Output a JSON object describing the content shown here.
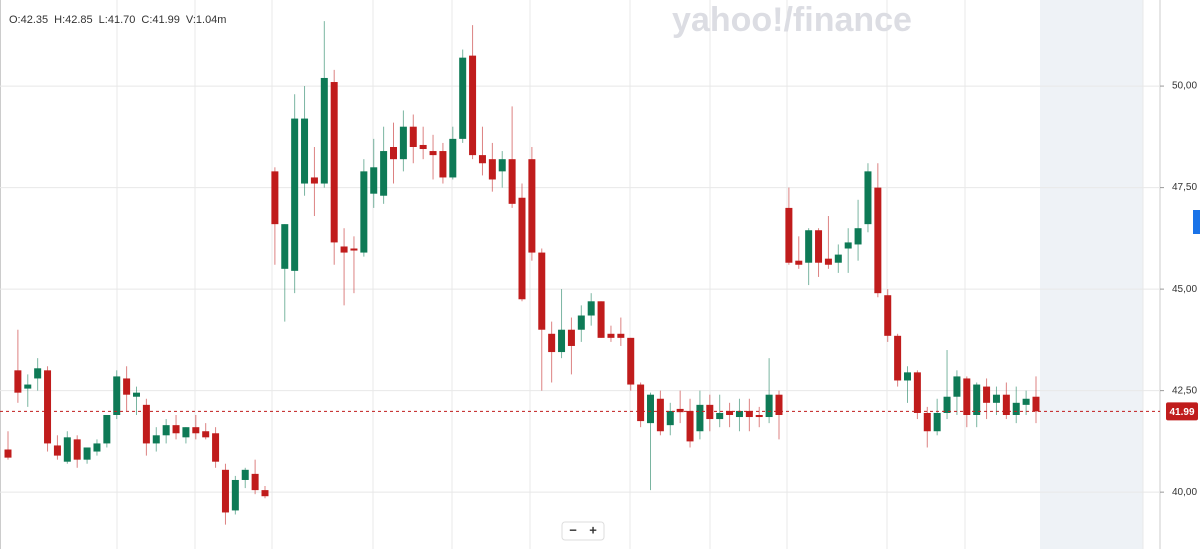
{
  "chart_data": {
    "type": "candlestick",
    "watermark": "yahoo!/finance",
    "info": [
      "O:42.35",
      "H:42.85",
      "L:41.70",
      "C:41.99",
      "V:1.04m"
    ],
    "zoom_out": "−",
    "zoom_in": "+",
    "up_color": "#0e7a56",
    "down_color": "#c01c1c",
    "ylim": [
      38.6,
      52.12
    ],
    "yticks": [
      {
        "value": 40,
        "label": "40,00"
      },
      {
        "value": 42.5,
        "label": "42,50"
      },
      {
        "value": 45,
        "label": "45,00"
      },
      {
        "value": 47.5,
        "label": "47,50"
      },
      {
        "value": 50,
        "label": "50,00"
      }
    ],
    "grid": true,
    "last": {
      "value": 41.99,
      "label": "41.99"
    },
    "ohlc": [
      [
        41.05,
        41.5,
        40.8,
        40.85
      ],
      [
        43.0,
        44.0,
        42.2,
        42.45
      ],
      [
        42.55,
        42.9,
        42.1,
        42.65
      ],
      [
        42.8,
        43.3,
        42.5,
        43.05
      ],
      [
        43.0,
        43.1,
        41.0,
        41.2
      ],
      [
        41.15,
        41.4,
        40.8,
        40.9
      ],
      [
        40.75,
        41.5,
        40.7,
        41.35
      ],
      [
        41.3,
        41.4,
        40.6,
        40.8
      ],
      [
        40.8,
        41.1,
        40.7,
        41.1
      ],
      [
        41.0,
        41.3,
        40.9,
        41.2
      ],
      [
        41.2,
        41.9,
        41.1,
        41.9
      ],
      [
        41.9,
        43.0,
        41.8,
        42.85
      ],
      [
        42.8,
        43.1,
        42.0,
        42.4
      ],
      [
        42.35,
        42.6,
        41.9,
        42.45
      ],
      [
        42.15,
        42.3,
        40.9,
        41.2
      ],
      [
        41.2,
        41.6,
        41.0,
        41.4
      ],
      [
        41.4,
        41.8,
        41.2,
        41.65
      ],
      [
        41.65,
        41.9,
        41.3,
        41.45
      ],
      [
        41.35,
        41.6,
        41.2,
        41.6
      ],
      [
        41.6,
        41.9,
        41.3,
        41.45
      ],
      [
        41.5,
        41.7,
        41.3,
        41.35
      ],
      [
        41.45,
        41.6,
        40.6,
        40.75
      ],
      [
        40.55,
        40.7,
        39.2,
        39.5
      ],
      [
        39.55,
        40.4,
        39.45,
        40.3
      ],
      [
        40.3,
        40.6,
        40.1,
        40.55
      ],
      [
        40.45,
        40.8,
        39.95,
        40.05
      ],
      [
        40.05,
        40.15,
        39.85,
        39.9
      ],
      [
        47.9,
        48.0,
        45.6,
        46.6
      ],
      [
        45.5,
        46.6,
        44.2,
        46.6
      ],
      [
        45.45,
        49.8,
        44.9,
        49.2
      ],
      [
        47.6,
        50.0,
        47.3,
        49.2
      ],
      [
        47.75,
        48.5,
        46.8,
        47.6
      ],
      [
        47.6,
        51.6,
        47.5,
        50.2
      ],
      [
        50.1,
        50.4,
        45.6,
        46.15
      ],
      [
        46.05,
        46.5,
        44.6,
        45.9
      ],
      [
        46.0,
        46.3,
        44.9,
        45.95
      ],
      [
        45.9,
        48.2,
        45.8,
        47.9
      ],
      [
        47.35,
        48.7,
        47.0,
        48.0
      ],
      [
        47.3,
        49.0,
        47.1,
        48.4
      ],
      [
        48.5,
        49.1,
        47.6,
        48.2
      ],
      [
        48.2,
        49.4,
        47.9,
        49.0
      ],
      [
        49.0,
        49.3,
        48.1,
        48.5
      ],
      [
        48.55,
        49.0,
        48.2,
        48.45
      ],
      [
        48.4,
        48.8,
        47.7,
        48.3
      ],
      [
        48.4,
        48.6,
        47.6,
        47.75
      ],
      [
        47.75,
        49.0,
        47.7,
        48.7
      ],
      [
        48.7,
        50.9,
        48.6,
        50.7
      ],
      [
        50.75,
        51.5,
        48.2,
        48.3
      ],
      [
        48.3,
        49.0,
        47.8,
        48.1
      ],
      [
        48.2,
        48.6,
        47.4,
        47.7
      ],
      [
        47.9,
        48.4,
        47.5,
        48.2
      ],
      [
        48.2,
        49.5,
        47.0,
        47.1
      ],
      [
        47.25,
        47.6,
        44.7,
        44.75
      ],
      [
        48.2,
        48.5,
        45.7,
        45.9
      ],
      [
        45.9,
        46.0,
        42.5,
        44.0
      ],
      [
        43.9,
        44.2,
        42.7,
        43.45
      ],
      [
        43.45,
        45.0,
        43.3,
        44.0
      ],
      [
        44.0,
        44.3,
        42.9,
        43.6
      ],
      [
        44.0,
        44.6,
        43.7,
        44.35
      ],
      [
        44.35,
        44.9,
        44.1,
        44.7
      ],
      [
        44.7,
        44.7,
        43.8,
        43.8
      ],
      [
        43.9,
        44.1,
        43.7,
        43.8
      ],
      [
        43.9,
        44.3,
        43.6,
        43.8
      ],
      [
        43.8,
        43.8,
        42.5,
        42.65
      ],
      [
        42.65,
        42.7,
        41.6,
        41.75
      ],
      [
        41.7,
        42.45,
        40.05,
        42.4
      ],
      [
        42.3,
        42.5,
        41.4,
        41.5
      ],
      [
        41.65,
        42.2,
        41.4,
        42.0
      ],
      [
        42.05,
        42.5,
        41.7,
        41.97
      ],
      [
        42.0,
        42.3,
        41.1,
        41.25
      ],
      [
        41.5,
        42.5,
        41.3,
        42.15
      ],
      [
        42.15,
        42.4,
        41.5,
        41.8
      ],
      [
        41.8,
        42.4,
        41.6,
        41.95
      ],
      [
        42.0,
        42.2,
        41.6,
        41.9
      ],
      [
        41.85,
        42.3,
        41.5,
        42.0
      ],
      [
        42.0,
        42.3,
        41.5,
        41.85
      ],
      [
        41.9,
        42.1,
        41.6,
        41.85
      ],
      [
        41.85,
        43.3,
        41.7,
        42.4
      ],
      [
        42.4,
        42.5,
        41.3,
        41.9
      ],
      [
        47.0,
        47.5,
        45.6,
        45.65
      ],
      [
        45.7,
        46.3,
        45.5,
        45.6
      ],
      [
        45.65,
        46.5,
        45.1,
        46.45
      ],
      [
        46.45,
        46.5,
        45.3,
        45.65
      ],
      [
        45.75,
        46.8,
        45.5,
        45.6
      ],
      [
        45.65,
        46.1,
        45.4,
        45.85
      ],
      [
        46.0,
        46.5,
        45.4,
        46.15
      ],
      [
        46.1,
        47.2,
        45.7,
        46.5
      ],
      [
        46.6,
        48.1,
        46.4,
        47.9
      ],
      [
        47.5,
        48.1,
        44.8,
        44.9
      ],
      [
        44.85,
        45.0,
        43.7,
        43.85
      ],
      [
        43.85,
        43.9,
        42.6,
        42.75
      ],
      [
        42.75,
        43.1,
        42.2,
        42.95
      ],
      [
        42.95,
        43.0,
        41.8,
        41.95
      ],
      [
        41.95,
        42.1,
        41.1,
        41.5
      ],
      [
        41.5,
        42.3,
        41.4,
        41.95
      ],
      [
        41.95,
        43.5,
        41.8,
        42.35
      ],
      [
        42.35,
        43.0,
        41.9,
        42.85
      ],
      [
        42.8,
        42.85,
        41.6,
        41.9
      ],
      [
        41.9,
        42.7,
        41.6,
        42.65
      ],
      [
        42.6,
        42.8,
        41.8,
        42.2
      ],
      [
        42.2,
        42.6,
        41.9,
        42.4
      ],
      [
        42.4,
        42.7,
        41.8,
        41.9
      ],
      [
        41.9,
        42.6,
        41.7,
        42.2
      ],
      [
        42.15,
        42.5,
        41.9,
        42.3
      ],
      [
        42.35,
        42.85,
        41.7,
        41.99
      ]
    ]
  }
}
